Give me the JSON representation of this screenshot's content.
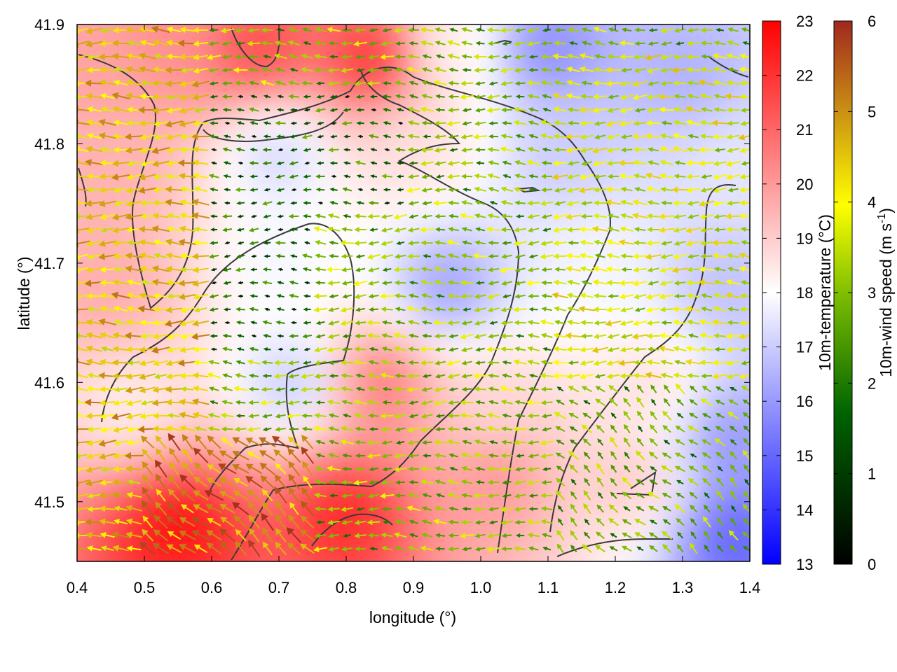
{
  "chart_data": {
    "type": "heatmap",
    "title": "",
    "xlabel": "longitude (°)",
    "ylabel": "latitude (°)",
    "xlim": [
      0.4,
      1.4
    ],
    "ylim": [
      41.45,
      41.9
    ],
    "x_ticks": [
      "0.4",
      "0.5",
      "0.6",
      "0.7",
      "0.8",
      "0.9",
      "1.0",
      "1.1",
      "1.2",
      "1.3",
      "1.4"
    ],
    "y_ticks": [
      "41.5",
      "41.6",
      "41.7",
      "41.8",
      "41.9"
    ],
    "temperature_colorbar": {
      "label": "10m-temperature (°C)",
      "range": [
        13,
        23
      ],
      "ticks": [
        "13",
        "14",
        "15",
        "16",
        "17",
        "18",
        "19",
        "20",
        "21",
        "22",
        "23"
      ],
      "colors": [
        "#0000ff",
        "#ffffff",
        "#ff0000"
      ]
    },
    "wind_colorbar": {
      "label": "10m-wind speed (m s",
      "label_sup": "-1",
      "label_end": ")",
      "range": [
        0,
        6
      ],
      "ticks": [
        "0",
        "1",
        "2",
        "3",
        "4",
        "5",
        "6"
      ],
      "colors": [
        "#000000",
        "#006400",
        "#7fbf00",
        "#ffff00",
        "#c88c14",
        "#a0281e"
      ]
    },
    "temperature_field": [
      {
        "lon": 0.42,
        "lat": 41.87,
        "t": 19.8
      },
      {
        "lon": 0.55,
        "lat": 41.89,
        "t": 20.2
      },
      {
        "lon": 0.67,
        "lat": 41.88,
        "t": 21.5
      },
      {
        "lon": 0.84,
        "lat": 41.87,
        "t": 22.0
      },
      {
        "lon": 0.95,
        "lat": 41.88,
        "t": 18.3
      },
      {
        "lon": 1.1,
        "lat": 41.88,
        "t": 15.8
      },
      {
        "lon": 1.3,
        "lat": 41.86,
        "t": 16.5
      },
      {
        "lon": 0.45,
        "lat": 41.78,
        "t": 19.5
      },
      {
        "lon": 0.7,
        "lat": 41.79,
        "t": 17.2
      },
      {
        "lon": 0.9,
        "lat": 41.8,
        "t": 18.6
      },
      {
        "lon": 1.12,
        "lat": 41.79,
        "t": 17.0
      },
      {
        "lon": 1.38,
        "lat": 41.78,
        "t": 17.5
      },
      {
        "lon": 0.45,
        "lat": 41.68,
        "t": 19.6
      },
      {
        "lon": 0.7,
        "lat": 41.7,
        "t": 17.8
      },
      {
        "lon": 0.95,
        "lat": 41.68,
        "t": 16.2
      },
      {
        "lon": 1.18,
        "lat": 41.7,
        "t": 17.8
      },
      {
        "lon": 1.36,
        "lat": 41.68,
        "t": 16.8
      },
      {
        "lon": 0.48,
        "lat": 41.58,
        "t": 18.4
      },
      {
        "lon": 0.72,
        "lat": 41.6,
        "t": 17.0
      },
      {
        "lon": 0.85,
        "lat": 41.6,
        "t": 20.5
      },
      {
        "lon": 1.02,
        "lat": 41.58,
        "t": 18.8
      },
      {
        "lon": 1.25,
        "lat": 41.6,
        "t": 18.6
      },
      {
        "lon": 1.37,
        "lat": 41.55,
        "t": 16.0
      },
      {
        "lon": 0.55,
        "lat": 41.48,
        "t": 22.6
      },
      {
        "lon": 0.8,
        "lat": 41.49,
        "t": 22.2
      },
      {
        "lon": 1.02,
        "lat": 41.52,
        "t": 20.0
      },
      {
        "lon": 1.22,
        "lat": 41.52,
        "t": 19.0
      },
      {
        "lon": 1.38,
        "lat": 41.47,
        "t": 15.0
      }
    ],
    "wind_field_pattern": [
      {
        "lon_range": [
          0.4,
          0.6
        ],
        "lat_range": [
          41.45,
          41.9
        ],
        "direction": "toward west",
        "speed": 4.0
      },
      {
        "lon_range": [
          0.6,
          0.9
        ],
        "lat_range": [
          41.62,
          41.85
        ],
        "direction": "toward west",
        "speed": 1.2
      },
      {
        "lon_range": [
          0.75,
          1.1
        ],
        "lat_range": [
          41.55,
          41.75
        ],
        "direction": "toward west",
        "speed": 2.5
      },
      {
        "lon_range": [
          1.1,
          1.4
        ],
        "lat_range": [
          41.6,
          41.88
        ],
        "direction": "toward west",
        "speed": 3.2
      },
      {
        "lon_range": [
          0.5,
          0.75
        ],
        "lat_range": [
          41.45,
          41.55
        ],
        "direction": "toward north-west",
        "speed": 4.8
      },
      {
        "lon_range": [
          1.1,
          1.4
        ],
        "lat_range": [
          41.45,
          41.6
        ],
        "direction": "toward north-west",
        "speed": 2.2
      }
    ]
  }
}
